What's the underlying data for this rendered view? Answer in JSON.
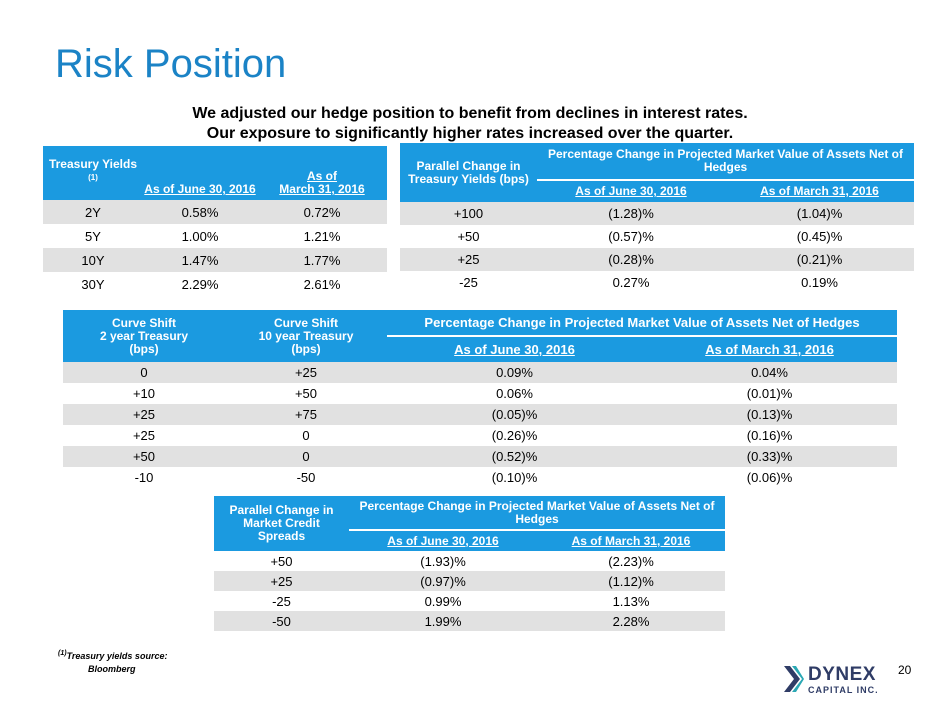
{
  "title": "Risk Position",
  "subtitle": {
    "line1": "We adjusted our hedge position to benefit from declines in interest rates.",
    "line2": "Our exposure to significantly higher rates increased over the quarter."
  },
  "treasury": {
    "h_yields": "Treasury Yields",
    "h_fn": "(1)",
    "h_june": "As of June 30, 2016",
    "h_march_a": "As of",
    "h_march_b": "March 31, 2016",
    "rows": [
      [
        "2Y",
        "0.58%",
        "0.72%"
      ],
      [
        "5Y",
        "1.00%",
        "1.21%"
      ],
      [
        "10Y",
        "1.47%",
        "1.77%"
      ],
      [
        "30Y",
        "2.29%",
        "2.61%"
      ]
    ]
  },
  "parallel": {
    "h_left": "Parallel Change in Treasury Yields (bps)",
    "h_group": "Percentage Change in Projected Market Value of Assets Net of Hedges",
    "h_june": "As of June 30, 2016",
    "h_march": "As of March 31, 2016",
    "rows": [
      [
        "+100",
        "(1.28)%",
        "(1.04)%"
      ],
      [
        "+50",
        "(0.57)%",
        "(0.45)%"
      ],
      [
        "+25",
        "(0.28)%",
        "(0.21)%"
      ],
      [
        "-25",
        "0.27%",
        "0.19%"
      ]
    ]
  },
  "curve": {
    "h_2y_a": "Curve Shift",
    "h_2y_b": "2 year Treasury",
    "h_2y_c": "(bps)",
    "h_10y_a": "Curve Shift",
    "h_10y_b": "10 year Treasury",
    "h_10y_c": "(bps)",
    "h_group": "Percentage Change in Projected Market Value of Assets Net of Hedges",
    "h_june": "As of June 30, 2016",
    "h_march": "As of March 31, 2016",
    "rows": [
      [
        "0",
        "+25",
        "0.09%",
        "0.04%"
      ],
      [
        "+10",
        "+50",
        "0.06%",
        "(0.01)%"
      ],
      [
        "+25",
        "+75",
        "(0.05)%",
        "(0.13)%"
      ],
      [
        "+25",
        "0",
        "(0.26)%",
        "(0.16)%"
      ],
      [
        "+50",
        "0",
        "(0.52)%",
        "(0.33)%"
      ],
      [
        "-10",
        "-50",
        "(0.10)%",
        "(0.06)%"
      ]
    ]
  },
  "credit": {
    "h_left": "Parallel Change in Market Credit Spreads",
    "h_group": "Percentage Change in Projected Market Value of Assets Net of Hedges",
    "h_june": "As of June 30, 2016",
    "h_march": "As of March 31, 2016",
    "rows": [
      [
        "+50",
        "(1.93)%",
        "(2.23)%"
      ],
      [
        "+25",
        "(0.97)%",
        "(1.12)%"
      ],
      [
        "-25",
        "0.99%",
        "1.13%"
      ],
      [
        "-50",
        "1.99%",
        "2.28%"
      ]
    ]
  },
  "footnote": {
    "marker": "(1)",
    "line1": "Treasury yields source:",
    "line2": "Bloomberg"
  },
  "page_number": "20",
  "logo": {
    "name": "DYNEX",
    "tagline": "CAPITAL INC."
  },
  "colors": {
    "accent": "#1b83c6",
    "header_bg": "#1b9ae0",
    "band": "#e1e1e1",
    "logo_navy": "#2f3c66",
    "logo_teal": "#2aa8b4"
  }
}
